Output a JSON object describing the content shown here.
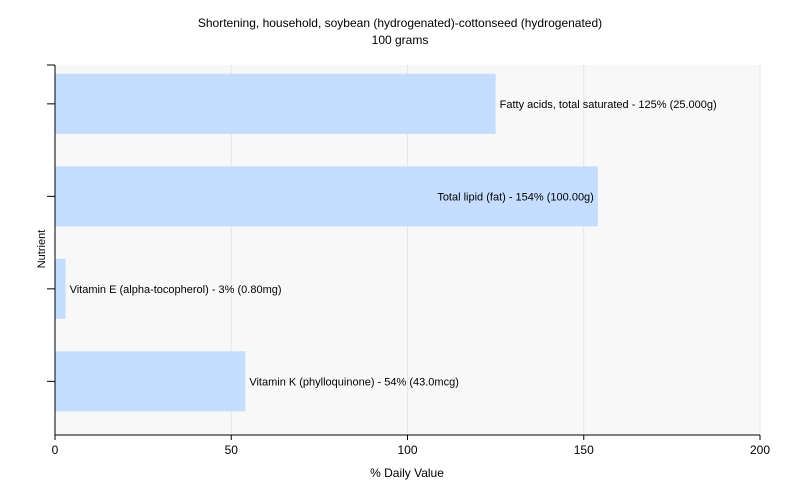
{
  "chart_data": {
    "type": "bar",
    "orientation": "horizontal",
    "title": "Shortening, household, soybean (hydrogenated)-cottonseed (hydrogenated)",
    "subtitle": "100 grams",
    "xlabel": "% Daily Value",
    "ylabel": "Nutrient",
    "xlim": [
      0,
      200
    ],
    "x_ticks": [
      0,
      50,
      100,
      150,
      200
    ],
    "grid": true,
    "bar_color": "#c5deff",
    "background_color": "#ffffff",
    "plot_background_color": "#f8f8f8",
    "categories": [
      "Fatty acids, total saturated",
      "Total lipid (fat)",
      "Vitamin E (alpha-tocopherol)",
      "Vitamin K (phylloquinone)"
    ],
    "values": [
      125,
      154,
      3,
      54
    ],
    "labels": [
      "Fatty acids, total saturated - 125% (25.000g)",
      "Total lipid (fat) - 154% (100.00g)",
      "Vitamin E (alpha-tocopherol) - 3% (0.80mg)",
      "Vitamin K (phylloquinone) - 54% (43.0mcg)"
    ]
  }
}
